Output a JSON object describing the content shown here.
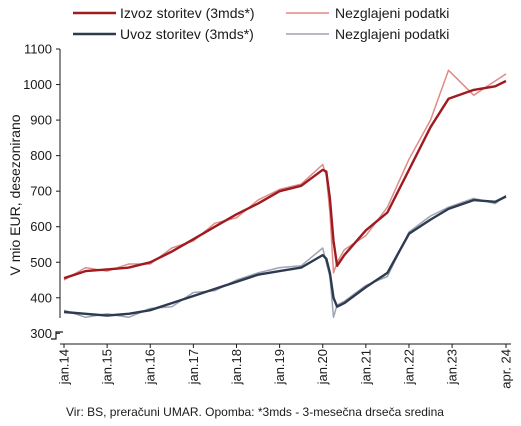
{
  "chart_data": {
    "type": "line",
    "ylabel": "V mio EUR, desezonirano",
    "source_note": "Vir: BS, preračuni UMAR. Opomba: *3mds - 3-mesečna drseča sredina",
    "ylim": [
      270,
      1100
    ],
    "y_ticks": [
      300,
      400,
      500,
      600,
      700,
      800,
      900,
      1000,
      1100
    ],
    "x_range": [
      "2014-01",
      "2024-04"
    ],
    "x_ticks": [
      {
        "label": "jan.14",
        "date": "2014-01"
      },
      {
        "label": "jan.15",
        "date": "2015-01"
      },
      {
        "label": "jan.16",
        "date": "2016-01"
      },
      {
        "label": "jan.17",
        "date": "2017-01"
      },
      {
        "label": "jan.18",
        "date": "2018-01"
      },
      {
        "label": "jan.19",
        "date": "2019-01"
      },
      {
        "label": "jan.20",
        "date": "2020-01"
      },
      {
        "label": "jan.21",
        "date": "2021-01"
      },
      {
        "label": "jan.22",
        "date": "2022-01"
      },
      {
        "label": "jan.23",
        "date": "2023-01"
      },
      {
        "label": "apr. 24",
        "date": "2024-04"
      }
    ],
    "axis_break": true,
    "grid": false,
    "legend_position": "top",
    "series": [
      {
        "name": "Izvoz storitev (3mds*)",
        "color": "#9e1c20",
        "style": "thick",
        "points": [
          [
            "2014-01",
            455
          ],
          [
            "2014-07",
            475
          ],
          [
            "2015-01",
            480
          ],
          [
            "2015-07",
            485
          ],
          [
            "2016-01",
            500
          ],
          [
            "2016-07",
            530
          ],
          [
            "2017-01",
            565
          ],
          [
            "2017-07",
            600
          ],
          [
            "2018-01",
            635
          ],
          [
            "2018-07",
            665
          ],
          [
            "2019-01",
            700
          ],
          [
            "2019-07",
            715
          ],
          [
            "2020-01",
            760
          ],
          [
            "2020-02",
            755
          ],
          [
            "2020-03",
            680
          ],
          [
            "2020-04",
            560
          ],
          [
            "2020-05",
            490
          ],
          [
            "2020-07",
            520
          ],
          [
            "2021-01",
            590
          ],
          [
            "2021-07",
            640
          ],
          [
            "2022-01",
            760
          ],
          [
            "2022-07",
            880
          ],
          [
            "2022-12",
            960
          ],
          [
            "2023-07",
            985
          ],
          [
            "2024-01",
            995
          ],
          [
            "2024-04",
            1010
          ]
        ]
      },
      {
        "name": "Nezglajeni podatki",
        "color": "#e08a8a",
        "style": "thin",
        "points": [
          [
            "2014-01",
            450
          ],
          [
            "2014-07",
            485
          ],
          [
            "2015-01",
            475
          ],
          [
            "2015-07",
            495
          ],
          [
            "2016-01",
            495
          ],
          [
            "2016-07",
            540
          ],
          [
            "2017-01",
            560
          ],
          [
            "2017-07",
            610
          ],
          [
            "2018-01",
            625
          ],
          [
            "2018-07",
            675
          ],
          [
            "2019-01",
            705
          ],
          [
            "2019-07",
            720
          ],
          [
            "2020-01",
            775
          ],
          [
            "2020-02",
            745
          ],
          [
            "2020-03",
            640
          ],
          [
            "2020-04",
            470
          ],
          [
            "2020-05",
            500
          ],
          [
            "2020-07",
            535
          ],
          [
            "2021-01",
            575
          ],
          [
            "2021-07",
            655
          ],
          [
            "2022-01",
            790
          ],
          [
            "2022-07",
            900
          ],
          [
            "2022-12",
            1040
          ],
          [
            "2023-07",
            970
          ],
          [
            "2024-01",
            1010
          ],
          [
            "2024-04",
            1030
          ]
        ]
      },
      {
        "name": "Uvoz storitev (3mds*)",
        "color": "#2e3a4f",
        "style": "thick",
        "points": [
          [
            "2014-01",
            360
          ],
          [
            "2014-07",
            355
          ],
          [
            "2015-01",
            350
          ],
          [
            "2015-07",
            355
          ],
          [
            "2016-01",
            365
          ],
          [
            "2016-07",
            385
          ],
          [
            "2017-01",
            405
          ],
          [
            "2017-07",
            425
          ],
          [
            "2018-01",
            445
          ],
          [
            "2018-07",
            465
          ],
          [
            "2019-01",
            475
          ],
          [
            "2019-07",
            485
          ],
          [
            "2020-01",
            520
          ],
          [
            "2020-02",
            510
          ],
          [
            "2020-03",
            470
          ],
          [
            "2020-04",
            400
          ],
          [
            "2020-05",
            375
          ],
          [
            "2020-07",
            385
          ],
          [
            "2021-01",
            430
          ],
          [
            "2021-07",
            470
          ],
          [
            "2022-01",
            580
          ],
          [
            "2022-07",
            620
          ],
          [
            "2022-12",
            650
          ],
          [
            "2023-07",
            675
          ],
          [
            "2024-01",
            670
          ],
          [
            "2024-04",
            685
          ]
        ]
      },
      {
        "name": "Nezglajeni podatki",
        "color": "#9ea3b5",
        "style": "thin",
        "points": [
          [
            "2014-01",
            365
          ],
          [
            "2014-07",
            345
          ],
          [
            "2015-01",
            355
          ],
          [
            "2015-07",
            345
          ],
          [
            "2016-01",
            370
          ],
          [
            "2016-07",
            375
          ],
          [
            "2017-01",
            415
          ],
          [
            "2017-07",
            420
          ],
          [
            "2018-01",
            450
          ],
          [
            "2018-07",
            470
          ],
          [
            "2019-01",
            485
          ],
          [
            "2019-07",
            490
          ],
          [
            "2020-01",
            540
          ],
          [
            "2020-02",
            500
          ],
          [
            "2020-03",
            460
          ],
          [
            "2020-04",
            345
          ],
          [
            "2020-05",
            380
          ],
          [
            "2020-07",
            390
          ],
          [
            "2021-01",
            435
          ],
          [
            "2021-07",
            460
          ],
          [
            "2022-01",
            585
          ],
          [
            "2022-07",
            630
          ],
          [
            "2022-12",
            655
          ],
          [
            "2023-07",
            680
          ],
          [
            "2024-01",
            665
          ],
          [
            "2024-04",
            688
          ]
        ]
      }
    ]
  }
}
